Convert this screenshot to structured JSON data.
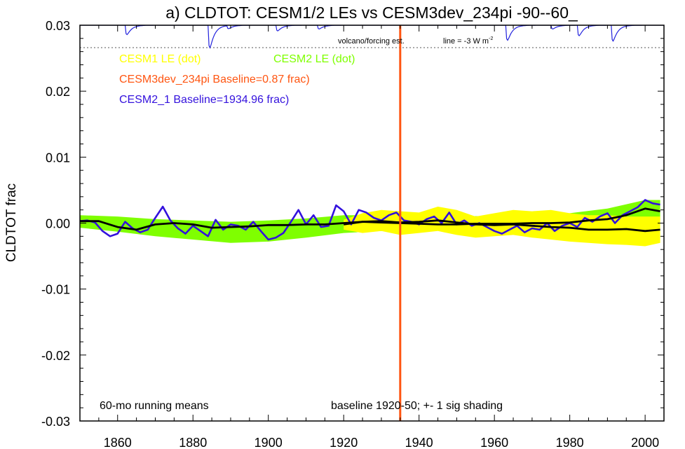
{
  "chart_data": {
    "type": "line",
    "title": "a) CLDTOT: CESM1/2 LEs vs CESM3dev_234pi -90--60_",
    "xlabel": "",
    "ylabel": "CLDTOT frac",
    "xlim": [
      1850,
      2005
    ],
    "ylim": [
      -0.03,
      0.03
    ],
    "x_ticks": [
      1860,
      1880,
      1900,
      1920,
      1940,
      1960,
      1980,
      2000
    ],
    "y_ticks": [
      -0.03,
      -0.02,
      -0.01,
      0.0,
      0.01,
      0.02,
      0.03
    ],
    "y_tick_labels": [
      "-0.03",
      "-0.02",
      "-0.01",
      "0.00",
      "0.01",
      "0.02",
      "0.03"
    ],
    "grid": false,
    "legend_placement": "top-left",
    "legend": {
      "cesm1": "CESM1 LE (dot)",
      "cesm2": "CESM2 LE (dot)",
      "cesm3": "CESM3dev_234pi Baseline=0.87 frac)",
      "cesm21": "CESM2_1 Baseline=1934.96 frac)"
    },
    "annotations": {
      "volcano": "volcano/forcing est.",
      "line_eq": "line = -3 W m",
      "line_sup": "-2",
      "running_means": "60-mo running means",
      "baseline": "baseline 1920-50; +- 1 sig shading"
    },
    "colors": {
      "cesm1_shading": "#ffff00",
      "cesm2_shading": "#7fff00",
      "ensemble_mean": "#000000",
      "cesm21_line": "#3311dd",
      "cesm3_marker": "#ff5511",
      "volcano_line": "#2222dd"
    },
    "vertical_marker_x": 1935,
    "volcano_reference_y": 0.0266,
    "volcano_dips": [
      {
        "year": 1862,
        "depth": 0.0025
      },
      {
        "year": 1884,
        "depth": 0.006
      },
      {
        "year": 1889,
        "depth": 0.0008
      },
      {
        "year": 1902,
        "depth": 0.0015
      },
      {
        "year": 1913,
        "depth": 0.001
      },
      {
        "year": 1963,
        "depth": 0.004
      },
      {
        "year": 1975,
        "depth": 0.001
      },
      {
        "year": 1982,
        "depth": 0.0028
      },
      {
        "year": 1991,
        "depth": 0.0042
      }
    ],
    "series": [
      {
        "name": "CESM2 LE",
        "kind": "band",
        "x": [
          1850,
          1860,
          1870,
          1880,
          1890,
          1900,
          1910,
          1920,
          1930,
          1940,
          1950,
          1960,
          1970,
          1980,
          1990,
          2000,
          2004
        ],
        "upper": [
          0.0012,
          0.001,
          0.0006,
          0.0004,
          0.0002,
          0.0004,
          0.0007,
          0.0012,
          0.0012,
          0.001,
          0.001,
          0.0011,
          0.0012,
          0.0015,
          0.0022,
          0.0035,
          0.0035
        ],
        "lower": [
          -0.0007,
          -0.0013,
          -0.002,
          -0.0025,
          -0.003,
          -0.0028,
          -0.0022,
          -0.0015,
          -0.0012,
          -0.001,
          -0.0012,
          -0.0011,
          -0.001,
          -0.0008,
          -0.0005,
          0.0,
          0.0005
        ]
      },
      {
        "name": "CESM1 LE",
        "kind": "band",
        "x": [
          1920,
          1925,
          1930,
          1935,
          1940,
          1945,
          1950,
          1955,
          1960,
          1965,
          1970,
          1975,
          1980,
          1985,
          1990,
          1995,
          2000,
          2004
        ],
        "upper": [
          0.0005,
          0.0015,
          0.002,
          0.0018,
          0.0016,
          0.0025,
          0.002,
          0.001,
          0.0015,
          0.002,
          0.0018,
          0.002,
          0.0015,
          0.0012,
          0.0012,
          0.001,
          0.001,
          0.001
        ],
        "lower": [
          -0.001,
          -0.0015,
          -0.0012,
          -0.0018,
          -0.0015,
          -0.0012,
          -0.0018,
          -0.0022,
          -0.002,
          -0.0018,
          -0.0022,
          -0.0025,
          -0.0028,
          -0.003,
          -0.0032,
          -0.0033,
          -0.0035,
          -0.003
        ]
      },
      {
        "name": "CESM2 LE",
        "kind": "mean",
        "x": [
          1850,
          1855,
          1860,
          1865,
          1870,
          1875,
          1880,
          1885,
          1890,
          1895,
          1900,
          1905,
          1910,
          1915,
          1920,
          1925,
          1930,
          1935,
          1940,
          1945,
          1950,
          1955,
          1960,
          1965,
          1970,
          1975,
          1980,
          1985,
          1990,
          1995,
          2000,
          2004
        ],
        "y": [
          0.0003,
          0.0003,
          -0.0006,
          -0.001,
          -0.0002,
          0.0,
          -0.0002,
          -0.0007,
          -0.0006,
          -0.0005,
          -0.0003,
          -0.0003,
          -0.0002,
          -0.0002,
          0.0,
          0.0002,
          0.0001,
          0.0,
          -0.0001,
          -0.0002,
          -0.0002,
          -0.0001,
          -0.0001,
          -0.0001,
          0.0,
          0.0,
          0.0001,
          0.0004,
          0.0006,
          0.0012,
          0.0022,
          0.0018
        ]
      },
      {
        "name": "CESM1 LE",
        "kind": "mean",
        "x": [
          1920,
          1925,
          1930,
          1935,
          1940,
          1945,
          1950,
          1955,
          1960,
          1965,
          1970,
          1975,
          1980,
          1985,
          1990,
          1995,
          2000,
          2004
        ],
        "y": [
          -0.0002,
          0.0002,
          0.0003,
          0.0001,
          0.0002,
          0.0004,
          0.0001,
          -0.0002,
          -0.0003,
          -0.0002,
          -0.0004,
          -0.0006,
          -0.0007,
          -0.001,
          -0.001,
          -0.0009,
          -0.0012,
          -0.001
        ]
      },
      {
        "name": "CESM2_1",
        "kind": "line",
        "x": [
          1850,
          1852,
          1854,
          1856,
          1858,
          1860,
          1862,
          1864,
          1866,
          1868,
          1870,
          1872,
          1874,
          1876,
          1878,
          1880,
          1882,
          1884,
          1886,
          1888,
          1890,
          1892,
          1894,
          1896,
          1898,
          1900,
          1902,
          1904,
          1906,
          1908,
          1910,
          1912,
          1914,
          1916,
          1918,
          1920,
          1922,
          1924,
          1926,
          1928,
          1930,
          1932,
          1934,
          1936,
          1938,
          1940,
          1942,
          1944,
          1946,
          1948,
          1950,
          1952,
          1954,
          1956,
          1958,
          1960,
          1962,
          1964,
          1966,
          1968,
          1970,
          1972,
          1974,
          1976,
          1978,
          1980,
          1982,
          1984,
          1986,
          1988,
          1990,
          1992,
          1994,
          1996,
          1998,
          2000,
          2002,
          2004
        ],
        "y": [
          0.0003,
          0.0004,
          0.0001,
          -0.0012,
          -0.002,
          -0.0016,
          0.0002,
          -0.0008,
          -0.0014,
          -0.001,
          0.0008,
          0.0025,
          0.0004,
          -0.0008,
          -0.0016,
          -0.0004,
          -0.0012,
          -0.002,
          0.0005,
          -0.001,
          -0.0002,
          -0.0004,
          -0.001,
          0.0002,
          -0.0012,
          -0.0025,
          -0.0022,
          -0.0015,
          0.0002,
          0.002,
          -0.0002,
          0.0012,
          -0.0006,
          -0.0004,
          0.0027,
          0.0018,
          -0.0002,
          0.002,
          0.0016,
          0.0008,
          0.0004,
          0.0012,
          0.0016,
          0.0004,
          0.0002,
          -0.0002,
          0.0006,
          0.001,
          0.0,
          0.0016,
          -0.0002,
          0.0004,
          -0.0004,
          0.0,
          -0.0006,
          -0.0012,
          -0.0016,
          -0.001,
          -0.0004,
          -0.0014,
          -0.0008,
          -0.001,
          0.0,
          -0.0012,
          -0.0004,
          0.0,
          -0.0006,
          0.0008,
          0.0002,
          0.001,
          0.0015,
          0.0,
          0.0012,
          0.0018,
          0.0024,
          0.0035,
          0.003,
          0.0028
        ]
      }
    ]
  }
}
